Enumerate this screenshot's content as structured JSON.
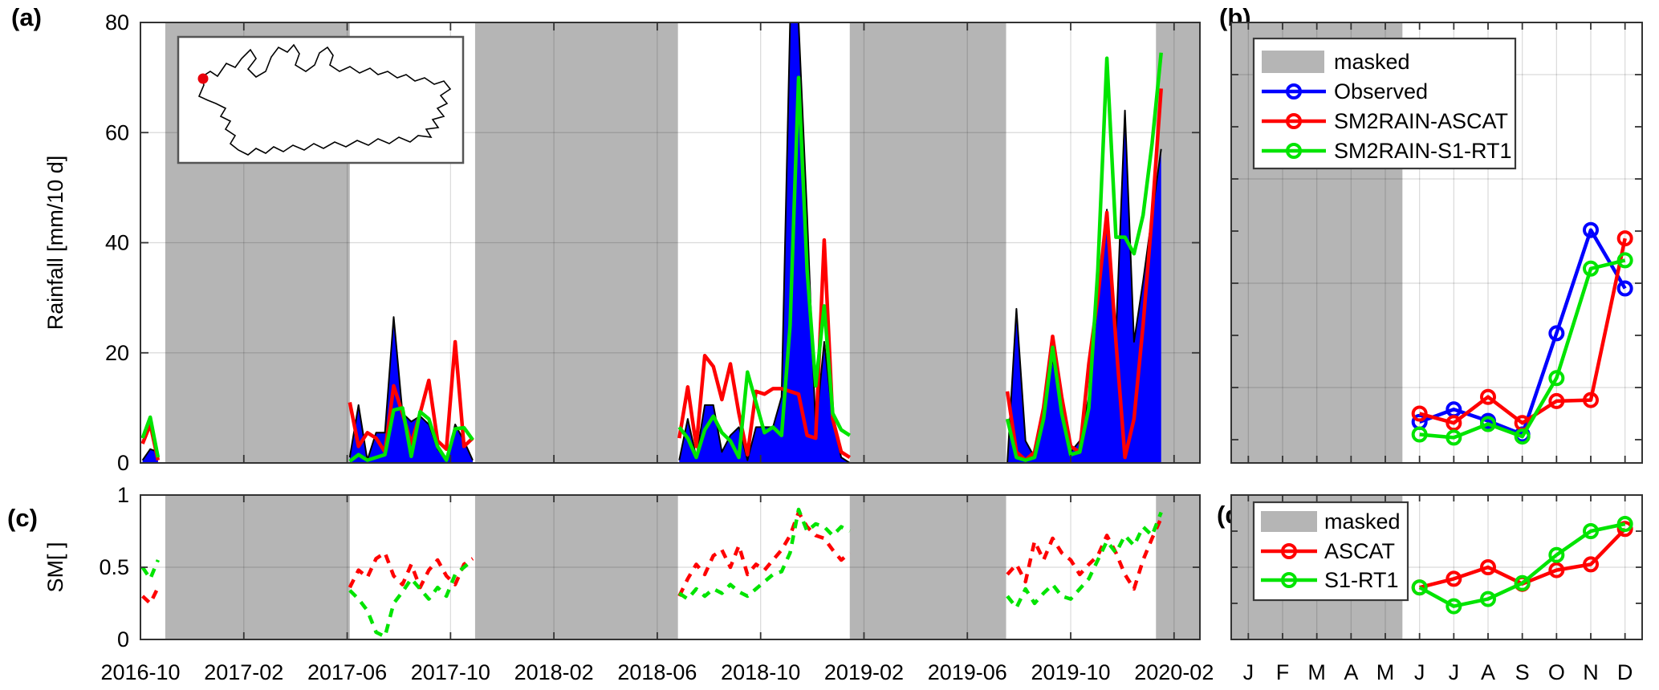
{
  "figure": {
    "panel_labels": {
      "a": "(a)",
      "b": "(b)",
      "c": "(c)",
      "d": "(d)"
    }
  },
  "colors": {
    "observed": "#0000FF",
    "ascat": "#FF0000",
    "s1rt1": "#00E400",
    "masked": "#B5B5B5",
    "frame": "#333333",
    "map_dot": "#E8000B"
  },
  "chart_data": [
    {
      "id": "a",
      "type": "area+line",
      "ylabel": "Rainfall [mm/10 d]",
      "ylim": [
        0,
        80
      ],
      "yticks": [
        0,
        20,
        40,
        60,
        80
      ],
      "ygrid": [
        20,
        40,
        60
      ],
      "x_tick_labels": [
        "2016-10",
        "2017-02",
        "2017-06",
        "2017-10",
        "2018-02",
        "2018-06",
        "2018-10",
        "2019-02",
        "2019-06",
        "2019-10",
        "2020-02"
      ],
      "x_range_months": 41,
      "x_tick_step_months": 4,
      "legend_ref": "panel b legend",
      "masked_bands_months": [
        [
          0.96,
          8.1
        ],
        [
          12.95,
          20.8
        ],
        [
          27.45,
          33.5
        ],
        [
          39.3,
          41
        ]
      ],
      "series_names": [
        "Observed",
        "SM2RAIN-ASCAT",
        "SM2RAIN-S1-RT1"
      ],
      "windows": [
        {
          "start_month": 0.08,
          "step_months": 0.3,
          "observed": [
            0.5,
            2.5,
            2
          ],
          "ascat": [
            3.5,
            7,
            0.5
          ],
          "s1rt1": [
            4.5,
            8.3,
            1
          ]
        },
        {
          "start_month": 8.1,
          "step_months": 0.34,
          "observed": [
            1,
            10.5,
            0.5,
            5.5,
            5.5,
            26.5,
            9,
            7.5,
            8.5,
            7,
            2.5,
            0.5,
            7,
            4,
            0.5
          ],
          "ascat": [
            11,
            3,
            5.5,
            4.5,
            2,
            14,
            9,
            3.5,
            9,
            15,
            4,
            2.5,
            22,
            3,
            4.5
          ],
          "s1rt1": [
            0.3,
            1.5,
            0.5,
            1,
            1.5,
            9.6,
            10,
            1.2,
            9.3,
            8,
            3,
            0.5,
            6.2,
            6.4,
            4.2
          ]
        },
        {
          "start_month": 20.85,
          "step_months": 0.33,
          "observed": [
            0.5,
            8,
            1,
            10.5,
            10.5,
            2,
            5,
            6.5,
            0.5,
            6.5,
            6.5,
            6.5,
            12,
            80,
            80,
            45,
            6,
            22,
            8,
            1,
            0
          ],
          "ascat": [
            4.5,
            13.8,
            3,
            19.5,
            17.5,
            11.5,
            18,
            9,
            1.5,
            13,
            12.5,
            13.5,
            13.5,
            13,
            12.5,
            5,
            4.5,
            40.5,
            8,
            2,
            1
          ],
          "s1rt1": [
            6.5,
            4.5,
            1,
            6,
            8.5,
            5.5,
            4,
            1,
            16.5,
            11,
            5.5,
            6.5,
            5,
            25,
            70,
            35,
            14,
            28.5,
            9,
            6,
            5
          ]
        },
        {
          "start_month": 33.55,
          "step_months": 0.35,
          "observed": [
            0,
            28,
            4,
            1,
            9,
            19,
            10,
            2,
            4,
            12,
            30,
            46,
            23,
            64,
            22,
            33,
            45,
            57
          ],
          "ascat": [
            13,
            2,
            0.5,
            2,
            10,
            23,
            12,
            3,
            2,
            18,
            30,
            45.5,
            22,
            1,
            8,
            25,
            45,
            68
          ],
          "s1rt1": [
            8,
            1,
            0.5,
            1,
            8,
            21,
            9,
            1.5,
            2,
            10,
            35,
            73.5,
            41,
            41,
            38,
            45,
            58,
            74.5
          ]
        }
      ],
      "inset_map": {
        "dot_xy": [
          253,
          98
        ],
        "outline": [
          [
            248,
            120
          ],
          [
            254,
            106
          ],
          [
            251,
            96
          ],
          [
            262,
            89
          ],
          [
            271,
            95
          ],
          [
            282,
            79
          ],
          [
            293,
            84
          ],
          [
            301,
            73
          ],
          [
            312,
            62
          ],
          [
            319,
            73
          ],
          [
            309,
            86
          ],
          [
            319,
            96
          ],
          [
            331,
            89
          ],
          [
            338,
            71
          ],
          [
            347,
            59
          ],
          [
            358,
            65
          ],
          [
            366,
            56
          ],
          [
            373,
            67
          ],
          [
            368,
            81
          ],
          [
            381,
            89
          ],
          [
            392,
            81
          ],
          [
            398,
            66
          ],
          [
            408,
            59
          ],
          [
            415,
            69
          ],
          [
            411,
            81
          ],
          [
            423,
            89
          ],
          [
            436,
            83
          ],
          [
            448,
            91
          ],
          [
            461,
            85
          ],
          [
            471,
            93
          ],
          [
            483,
            89
          ],
          [
            495,
            97
          ],
          [
            506,
            93
          ],
          [
            517,
            101
          ],
          [
            529,
            97
          ],
          [
            541,
            105
          ],
          [
            553,
            101
          ],
          [
            561,
            111
          ],
          [
            549,
            119
          ],
          [
            557,
            129
          ],
          [
            545,
            135
          ],
          [
            553,
            145
          ],
          [
            539,
            149
          ],
          [
            546,
            159
          ],
          [
            531,
            161
          ],
          [
            537,
            171
          ],
          [
            521,
            169
          ],
          [
            511,
            177
          ],
          [
            497,
            171
          ],
          [
            485,
            179
          ],
          [
            471,
            173
          ],
          [
            459,
            181
          ],
          [
            445,
            175
          ],
          [
            431,
            183
          ],
          [
            417,
            177
          ],
          [
            403,
            185
          ],
          [
            391,
            179
          ],
          [
            379,
            187
          ],
          [
            365,
            181
          ],
          [
            353,
            189
          ],
          [
            341,
            183
          ],
          [
            331,
            191
          ],
          [
            319,
            185
          ],
          [
            309,
            193
          ],
          [
            297,
            187
          ],
          [
            287,
            179
          ],
          [
            293,
            169
          ],
          [
            281,
            161
          ],
          [
            287,
            151
          ],
          [
            275,
            145
          ],
          [
            281,
            135
          ],
          [
            269,
            129
          ],
          [
            259,
            125
          ]
        ]
      }
    },
    {
      "id": "b",
      "type": "line",
      "legend": [
        "masked",
        "Observed",
        "SM2RAIN-ASCAT",
        "SM2RAIN-S1-RT1"
      ],
      "months": [
        "J",
        "F",
        "M",
        "A",
        "M",
        "J",
        "J",
        "A",
        "S",
        "O",
        "N",
        "D"
      ],
      "masked_months": [
        0,
        5
      ],
      "ylim": [
        -2.2,
        40
      ],
      "ygrid": [
        5,
        15,
        25,
        35
      ],
      "ytick_step": 5,
      "series": [
        {
          "name": "Observed",
          "start_month_index": 5,
          "values": [
            1.7,
            2.9,
            1.8,
            0.5,
            10.2,
            20.1,
            14.5
          ]
        },
        {
          "name": "SM2RAIN-ASCAT",
          "start_month_index": 5,
          "values": [
            2.5,
            1.6,
            4.1,
            1.6,
            3.7,
            3.8,
            19.3
          ]
        },
        {
          "name": "SM2RAIN-S1-RT1",
          "start_month_index": 5,
          "values": [
            0.5,
            0.2,
            1.5,
            0.3,
            5.9,
            16.4,
            17.2
          ]
        }
      ]
    },
    {
      "id": "c",
      "type": "dashed-line",
      "ylabel": "SM[ ]",
      "ylim": [
        0,
        1
      ],
      "yticks": [
        0,
        0.5,
        1
      ],
      "ytick_labels": [
        "0",
        "0.5",
        "1"
      ],
      "ygrid": [
        0.5
      ],
      "series_names": [
        "ASCAT",
        "S1-RT1"
      ],
      "windows": [
        {
          "start_month": 0.08,
          "step_months": 0.3,
          "sm_ascat": [
            0.3,
            0.25,
            0.36
          ],
          "sm_s1rt1": [
            0.5,
            0.42,
            0.55
          ]
        },
        {
          "start_month": 8.1,
          "step_months": 0.34,
          "sm_ascat": [
            0.36,
            0.48,
            0.43,
            0.56,
            0.6,
            0.44,
            0.38,
            0.52,
            0.36,
            0.48,
            0.55,
            0.44,
            0.38,
            0.52,
            0.56
          ],
          "sm_s1rt1": [
            0.34,
            0.28,
            0.2,
            0.05,
            0.02,
            0.25,
            0.33,
            0.42,
            0.35,
            0.28,
            0.36,
            0.3,
            0.45,
            0.5,
            0.55
          ]
        },
        {
          "start_month": 20.85,
          "step_months": 0.33,
          "sm_ascat": [
            0.3,
            0.42,
            0.52,
            0.45,
            0.58,
            0.62,
            0.5,
            0.65,
            0.45,
            0.52,
            0.48,
            0.55,
            0.62,
            0.72,
            0.88,
            0.78,
            0.72,
            0.7,
            0.62,
            0.55,
            0.6
          ],
          "sm_s1rt1": [
            0.32,
            0.28,
            0.35,
            0.3,
            0.35,
            0.32,
            0.38,
            0.33,
            0.3,
            0.35,
            0.4,
            0.45,
            0.47,
            0.6,
            0.9,
            0.75,
            0.8,
            0.78,
            0.72,
            0.78,
            0.75
          ]
        },
        {
          "start_month": 33.55,
          "step_months": 0.35,
          "sm_ascat": [
            0.45,
            0.52,
            0.4,
            0.68,
            0.55,
            0.7,
            0.6,
            0.55,
            0.45,
            0.52,
            0.58,
            0.72,
            0.6,
            0.45,
            0.35,
            0.55,
            0.7,
            0.84
          ],
          "sm_s1rt1": [
            0.3,
            0.22,
            0.35,
            0.25,
            0.32,
            0.38,
            0.3,
            0.28,
            0.35,
            0.42,
            0.55,
            0.68,
            0.6,
            0.72,
            0.65,
            0.78,
            0.72,
            0.88
          ]
        }
      ]
    },
    {
      "id": "d",
      "type": "line",
      "legend": [
        "masked",
        "ASCAT",
        "S1-RT1"
      ],
      "months": [
        "J",
        "F",
        "M",
        "A",
        "M",
        "J",
        "J",
        "A",
        "S",
        "O",
        "N",
        "D"
      ],
      "masked_months": [
        0,
        5
      ],
      "ylim": [
        0,
        1
      ],
      "ygrid": [
        0.5
      ],
      "series": [
        {
          "name": "ASCAT",
          "start_month_index": 5,
          "values": [
            0.36,
            0.42,
            0.5,
            0.385,
            0.48,
            0.52,
            0.765
          ]
        },
        {
          "name": "S1-RT1",
          "start_month_index": 5,
          "values": [
            0.36,
            0.23,
            0.28,
            0.39,
            0.585,
            0.75,
            0.8
          ]
        }
      ]
    }
  ]
}
